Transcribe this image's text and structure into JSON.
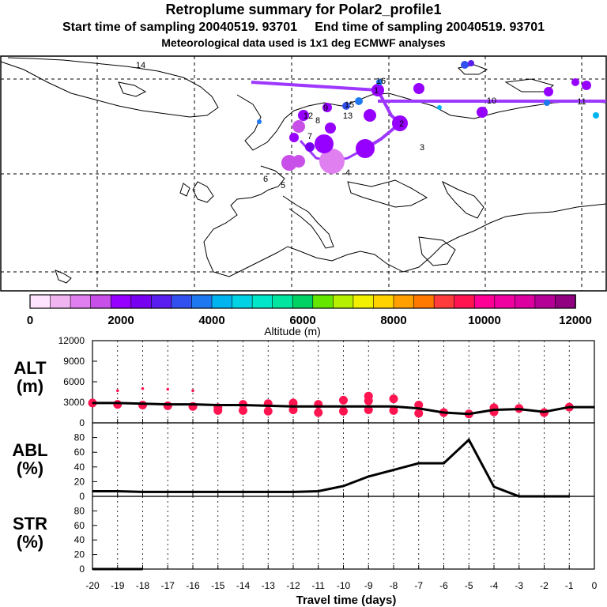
{
  "header": {
    "title": "Retroplume summary for Polar2_profile1",
    "sampling": "Start time of sampling 20040519. 93701     End time of sampling 20040519. 93701",
    "met": "Meteorological data used is 1x1 deg ECMWF analyses"
  },
  "map": {
    "labels": [
      "14",
      "16",
      "11",
      "15",
      "12",
      "13",
      "10",
      "9",
      "8",
      "7",
      "6",
      "5",
      "4",
      "3",
      "2",
      "1"
    ],
    "colorbar": {
      "ticks": [
        "0",
        "2000",
        "4000",
        "6000",
        "8000",
        "10000",
        "12000"
      ],
      "label": "Altitude (m)",
      "colors": [
        "#ffe4ff",
        "#f0b4f0",
        "#e080f0",
        "#c850e8",
        "#9600ff",
        "#7800f0",
        "#5a1ef0",
        "#3250f0",
        "#1e78f0",
        "#00b4f0",
        "#00d2e6",
        "#00e6c8",
        "#00e6a0",
        "#00d264",
        "#64e600",
        "#b4f000",
        "#f0f000",
        "#ffd200",
        "#ffa000",
        "#ff7800",
        "#ff3c3c",
        "#ff1450",
        "#ff0096",
        "#f000a0",
        "#dc00a0",
        "#b40096",
        "#900080"
      ]
    }
  },
  "chart_data": [
    {
      "type": "line",
      "panel": "ALT",
      "ylabel": "ALT\n(m)",
      "ylabel_lines": [
        "ALT",
        "(m)"
      ],
      "ylim": [
        0,
        12000
      ],
      "yticks": [
        0,
        3000,
        6000,
        9000,
        12000
      ],
      "ytick_labels": [
        "0",
        "3000",
        "6000",
        "9000",
        "12000"
      ],
      "x": [
        -20,
        -19,
        -18,
        -17,
        -16,
        -15,
        -14,
        -13,
        -12,
        -11,
        -10,
        -9,
        -8,
        -7,
        -6,
        -5,
        -4,
        -3,
        -2,
        -1,
        0
      ],
      "values": [
        2900,
        2900,
        2800,
        2700,
        2700,
        2600,
        2600,
        2500,
        2400,
        2400,
        2400,
        2400,
        2400,
        2100,
        1500,
        1300,
        1900,
        2000,
        1600,
        2300,
        2300
      ],
      "cluster_marks": [
        {
          "x": -20,
          "y": 2900
        },
        {
          "x": -19,
          "y": 2700
        },
        {
          "x": -19,
          "y": 4700
        },
        {
          "x": -18,
          "y": 2600
        },
        {
          "x": -18,
          "y": 5000
        },
        {
          "x": -17,
          "y": 2500
        },
        {
          "x": -17,
          "y": 4900
        },
        {
          "x": -16,
          "y": 2400
        },
        {
          "x": -16,
          "y": 4700
        },
        {
          "x": -15,
          "y": 2200
        },
        {
          "x": -15,
          "y": 1800
        },
        {
          "x": -14,
          "y": 2700
        },
        {
          "x": -14,
          "y": 1800
        },
        {
          "x": -13,
          "y": 2800
        },
        {
          "x": -13,
          "y": 1700
        },
        {
          "x": -12,
          "y": 1900
        },
        {
          "x": -12,
          "y": 2900
        },
        {
          "x": -11,
          "y": 2700
        },
        {
          "x": -11,
          "y": 1500
        },
        {
          "x": -10,
          "y": 3300
        },
        {
          "x": -10,
          "y": 1700
        },
        {
          "x": -9,
          "y": 3900
        },
        {
          "x": -9,
          "y": 1900
        },
        {
          "x": -9,
          "y": 3200
        },
        {
          "x": -8,
          "y": 3500
        },
        {
          "x": -8,
          "y": 1800
        },
        {
          "x": -7,
          "y": 1400
        },
        {
          "x": -7,
          "y": 2600
        },
        {
          "x": -6,
          "y": 1500
        },
        {
          "x": -5,
          "y": 1300
        },
        {
          "x": -4,
          "y": 2200
        },
        {
          "x": -4,
          "y": 1600
        },
        {
          "x": -3,
          "y": 2100
        },
        {
          "x": -2,
          "y": 1500
        },
        {
          "x": -1,
          "y": 2300
        }
      ]
    },
    {
      "type": "line",
      "panel": "ABL",
      "ylabel": "ABL\n(%)",
      "ylabel_lines": [
        "ABL",
        "(%)"
      ],
      "ylim": [
        0,
        100
      ],
      "yticks": [
        0,
        20,
        40,
        60,
        80
      ],
      "ytick_labels": [
        "0",
        "20",
        "40",
        "60",
        "80"
      ],
      "x": [
        -20,
        -19,
        -18,
        -17,
        -16,
        -15,
        -14,
        -13,
        -12,
        -11,
        -10,
        -9,
        -8,
        -7,
        -6,
        -5,
        -4,
        -3,
        -2,
        -1
      ],
      "values": [
        7,
        7,
        6,
        6,
        6,
        6,
        6,
        6,
        6,
        7,
        14,
        27,
        36,
        45,
        45,
        77,
        13,
        0,
        0,
        0
      ]
    },
    {
      "type": "line",
      "panel": "STR",
      "ylabel": "STR\n(%)",
      "ylabel_lines": [
        "STR",
        "(%)"
      ],
      "ylim": [
        0,
        100
      ],
      "yticks": [
        0,
        20,
        40,
        60,
        80
      ],
      "ytick_labels": [
        "0",
        "20",
        "40",
        "60",
        "80"
      ],
      "x": [
        -20,
        -19,
        -18
      ],
      "values": [
        0,
        0,
        0
      ]
    }
  ],
  "xaxis": {
    "xlabel": "Travel time (days)",
    "xlim": [
      -20,
      0
    ],
    "ticks": [
      -20,
      -19,
      -18,
      -17,
      -16,
      -15,
      -14,
      -13,
      -12,
      -11,
      -10,
      -9,
      -8,
      -7,
      -6,
      -5,
      -4,
      -3,
      -2,
      -1,
      0
    ],
    "tick_labels": [
      "-20",
      "-19",
      "-18",
      "-17",
      "-16",
      "-15",
      "-14",
      "-13",
      "-12",
      "-11",
      "-10",
      "-9",
      "-8",
      "-7",
      "-6",
      "-5",
      "-4",
      "-3",
      "-2",
      "-1",
      "0"
    ]
  },
  "colors": {
    "trajectory": "#9e38ff",
    "cluster": "#ff1450",
    "line": "#000000"
  }
}
